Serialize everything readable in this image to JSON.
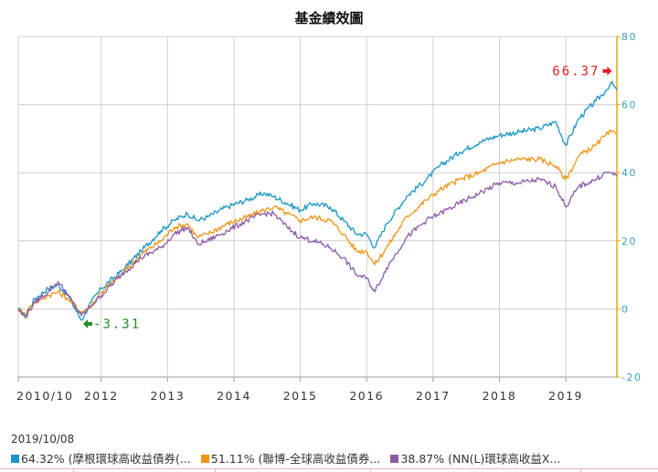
{
  "chart_title": "基金績效圖",
  "date_label": "2019/10/08",
  "colors": {
    "series1": "#1a96c8",
    "series2": "#ef9416",
    "series3": "#8c5aa6",
    "axis_right": "#f0a800",
    "grid": "#cfcfcf",
    "max_marker": "#e02020",
    "min_marker": "#1f8f1f"
  },
  "legend": [
    {
      "text": "64.32% (摩根環球高收益債券(...",
      "color": "#1a96c8"
    },
    {
      "text": "51.11% (聯博-全球高收益債券...",
      "color": "#ef9416"
    },
    {
      "text": "38.87% (NN(L)環球高收益X...",
      "color": "#8c5aa6"
    }
  ],
  "annotations": {
    "max_label": "66.37",
    "min_label": "-3.31"
  },
  "chart_data": {
    "type": "line",
    "title": "基金績效圖",
    "x_tick_labels": [
      "2010/10",
      "2012",
      "2013",
      "2014",
      "2015",
      "2016",
      "2017",
      "2018",
      "2019"
    ],
    "x_tick_years": [
      2010.75,
      2012.0,
      2013.0,
      2014.0,
      2015.0,
      2016.0,
      2017.0,
      2018.0,
      2019.0
    ],
    "xlim": [
      2010.75,
      2019.77
    ],
    "y_ticks": [
      80,
      60,
      40,
      20,
      0,
      -20
    ],
    "ylim": [
      -20,
      80
    ],
    "y_axis_side": "right",
    "grid": true,
    "legend_position": "bottom",
    "series": [
      {
        "name": "64.32% (摩根環球高收益債券(...",
        "points": [
          [
            2010.75,
            0
          ],
          [
            2010.85,
            -2
          ],
          [
            2011.0,
            3
          ],
          [
            2011.2,
            6
          ],
          [
            2011.35,
            7
          ],
          [
            2011.5,
            4
          ],
          [
            2011.7,
            -3.3
          ],
          [
            2011.85,
            2
          ],
          [
            2012.0,
            6
          ],
          [
            2012.3,
            11
          ],
          [
            2012.6,
            17
          ],
          [
            2012.9,
            23
          ],
          [
            2013.1,
            26
          ],
          [
            2013.3,
            28
          ],
          [
            2013.45,
            26
          ],
          [
            2013.6,
            27
          ],
          [
            2013.9,
            30
          ],
          [
            2014.2,
            32
          ],
          [
            2014.45,
            34
          ],
          [
            2014.6,
            33
          ],
          [
            2014.8,
            31
          ],
          [
            2015.0,
            29
          ],
          [
            2015.2,
            31
          ],
          [
            2015.45,
            30
          ],
          [
            2015.65,
            26
          ],
          [
            2015.85,
            22
          ],
          [
            2016.0,
            22
          ],
          [
            2016.12,
            18
          ],
          [
            2016.3,
            25
          ],
          [
            2016.6,
            33
          ],
          [
            2016.9,
            38
          ],
          [
            2017.1,
            42
          ],
          [
            2017.4,
            46
          ],
          [
            2017.7,
            49
          ],
          [
            2018.0,
            51
          ],
          [
            2018.3,
            52
          ],
          [
            2018.6,
            53
          ],
          [
            2018.85,
            55
          ],
          [
            2019.0,
            48
          ],
          [
            2019.2,
            56
          ],
          [
            2019.45,
            61
          ],
          [
            2019.6,
            64
          ],
          [
            2019.68,
            66.4
          ],
          [
            2019.77,
            64.3
          ]
        ]
      },
      {
        "name": "51.11% (聯博-全球高收益債券...",
        "points": [
          [
            2010.75,
            0
          ],
          [
            2010.85,
            -1.5
          ],
          [
            2011.0,
            2
          ],
          [
            2011.2,
            4
          ],
          [
            2011.35,
            5
          ],
          [
            2011.5,
            3
          ],
          [
            2011.7,
            -1
          ],
          [
            2011.85,
            1
          ],
          [
            2012.0,
            5
          ],
          [
            2012.3,
            10
          ],
          [
            2012.6,
            16
          ],
          [
            2012.9,
            20
          ],
          [
            2013.1,
            24
          ],
          [
            2013.3,
            25
          ],
          [
            2013.45,
            21
          ],
          [
            2013.6,
            22
          ],
          [
            2013.9,
            25
          ],
          [
            2014.2,
            27
          ],
          [
            2014.45,
            29
          ],
          [
            2014.6,
            30
          ],
          [
            2014.8,
            28
          ],
          [
            2015.0,
            26
          ],
          [
            2015.2,
            27
          ],
          [
            2015.45,
            26
          ],
          [
            2015.65,
            22
          ],
          [
            2015.85,
            17
          ],
          [
            2016.0,
            17
          ],
          [
            2016.12,
            13
          ],
          [
            2016.3,
            18
          ],
          [
            2016.6,
            27
          ],
          [
            2016.9,
            32
          ],
          [
            2017.1,
            35
          ],
          [
            2017.4,
            38
          ],
          [
            2017.7,
            40
          ],
          [
            2018.0,
            43
          ],
          [
            2018.3,
            44
          ],
          [
            2018.6,
            44
          ],
          [
            2018.85,
            42
          ],
          [
            2019.0,
            38
          ],
          [
            2019.2,
            45
          ],
          [
            2019.45,
            48
          ],
          [
            2019.6,
            51
          ],
          [
            2019.68,
            52
          ],
          [
            2019.77,
            51.1
          ]
        ]
      },
      {
        "name": "38.87% (NN(L)環球高收益X...",
        "points": [
          [
            2010.75,
            0
          ],
          [
            2010.85,
            -2.5
          ],
          [
            2011.0,
            2
          ],
          [
            2011.2,
            5
          ],
          [
            2011.35,
            8
          ],
          [
            2011.5,
            4
          ],
          [
            2011.7,
            -2
          ],
          [
            2011.85,
            1
          ],
          [
            2012.0,
            4
          ],
          [
            2012.3,
            10
          ],
          [
            2012.6,
            15
          ],
          [
            2012.9,
            18
          ],
          [
            2013.1,
            22
          ],
          [
            2013.3,
            24
          ],
          [
            2013.45,
            19
          ],
          [
            2013.6,
            20
          ],
          [
            2013.9,
            23
          ],
          [
            2014.2,
            26
          ],
          [
            2014.45,
            28
          ],
          [
            2014.6,
            28
          ],
          [
            2014.8,
            24
          ],
          [
            2015.0,
            21
          ],
          [
            2015.2,
            20
          ],
          [
            2015.45,
            18
          ],
          [
            2015.65,
            15
          ],
          [
            2015.85,
            10
          ],
          [
            2016.0,
            9
          ],
          [
            2016.12,
            5
          ],
          [
            2016.3,
            12
          ],
          [
            2016.6,
            21
          ],
          [
            2016.9,
            26
          ],
          [
            2017.1,
            28
          ],
          [
            2017.4,
            31
          ],
          [
            2017.7,
            34
          ],
          [
            2018.0,
            37
          ],
          [
            2018.3,
            37
          ],
          [
            2018.6,
            38
          ],
          [
            2018.85,
            36
          ],
          [
            2019.0,
            30
          ],
          [
            2019.2,
            36
          ],
          [
            2019.45,
            38
          ],
          [
            2019.6,
            40
          ],
          [
            2019.68,
            40
          ],
          [
            2019.77,
            38.9
          ]
        ]
      }
    ]
  }
}
